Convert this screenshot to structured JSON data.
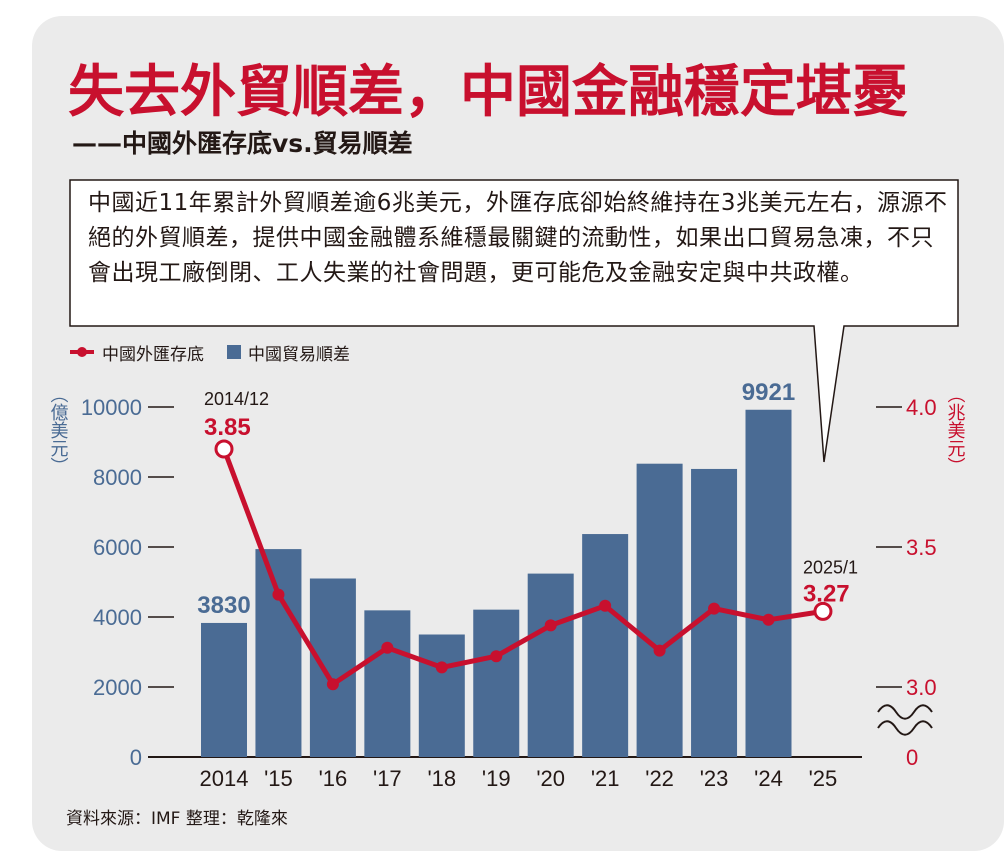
{
  "title": "失去外貿順差，中國金融穩定堪憂",
  "subtitle": "——中國外匯存底vs.貿易順差",
  "callout": "中國近11年累計外貿順差逾6兆美元，外匯存底卻始終維持在3兆美元左右，源源不絕的外貿順差，提供中國金融體系維穩最關鍵的流動性，如果出口貿易急凍，不只會出現工廠倒閉、工人失業的社會問題，更可能危及金融安定與中共政權。",
  "legend": {
    "reserves": "中國外匯存底",
    "surplus": "中國貿易順差"
  },
  "source": "資料來源：IMF 整理：乾隆來",
  "colors": {
    "brand": "#c8102e",
    "line": "#c8102e",
    "bar": "#4a6b94",
    "left_axis": "#4a6b94",
    "right_axis": "#c8102e",
    "text": "#231815",
    "card": "#ebebeb"
  },
  "chart_data": {
    "type": "bar",
    "categories": [
      "2014",
      "'15",
      "'16",
      "'17",
      "'18",
      "'19",
      "'20",
      "'21",
      "'22",
      "'23",
      "'24",
      "'25"
    ],
    "series": [
      {
        "name": "中國貿易順差",
        "type": "bar",
        "axis": "left",
        "values": [
          3830,
          5940,
          5100,
          4190,
          3500,
          4210,
          5240,
          6370,
          8380,
          8230,
          9921,
          null
        ]
      },
      {
        "name": "中國外匯存底",
        "type": "line",
        "axis": "right",
        "values": [
          3.85,
          3.33,
          3.01,
          3.14,
          3.07,
          3.11,
          3.22,
          3.29,
          3.13,
          3.28,
          3.24,
          3.27
        ]
      }
    ],
    "left_axis": {
      "label": "（億美元）",
      "ticks": [
        0,
        2000,
        4000,
        6000,
        8000,
        10000
      ],
      "ylim": [
        0,
        10000
      ]
    },
    "right_axis": {
      "label": "（兆美元）",
      "ticks": [
        "0",
        "3.0",
        "3.5",
        "4.0"
      ],
      "break": true,
      "ylim": [
        3.0,
        4.0
      ]
    },
    "data_labels": [
      {
        "series": "中國貿易順差",
        "category": "2014",
        "text": "3830"
      },
      {
        "series": "中國貿易順差",
        "category": "'24",
        "text": "9921"
      },
      {
        "series": "中國外匯存底",
        "category": "2014",
        "date": "2014/12",
        "text": "3.85"
      },
      {
        "series": "中國外匯存底",
        "category": "'25",
        "date": "2025/1",
        "text": "3.27"
      }
    ],
    "grid": false,
    "legend_position": "top-left"
  }
}
